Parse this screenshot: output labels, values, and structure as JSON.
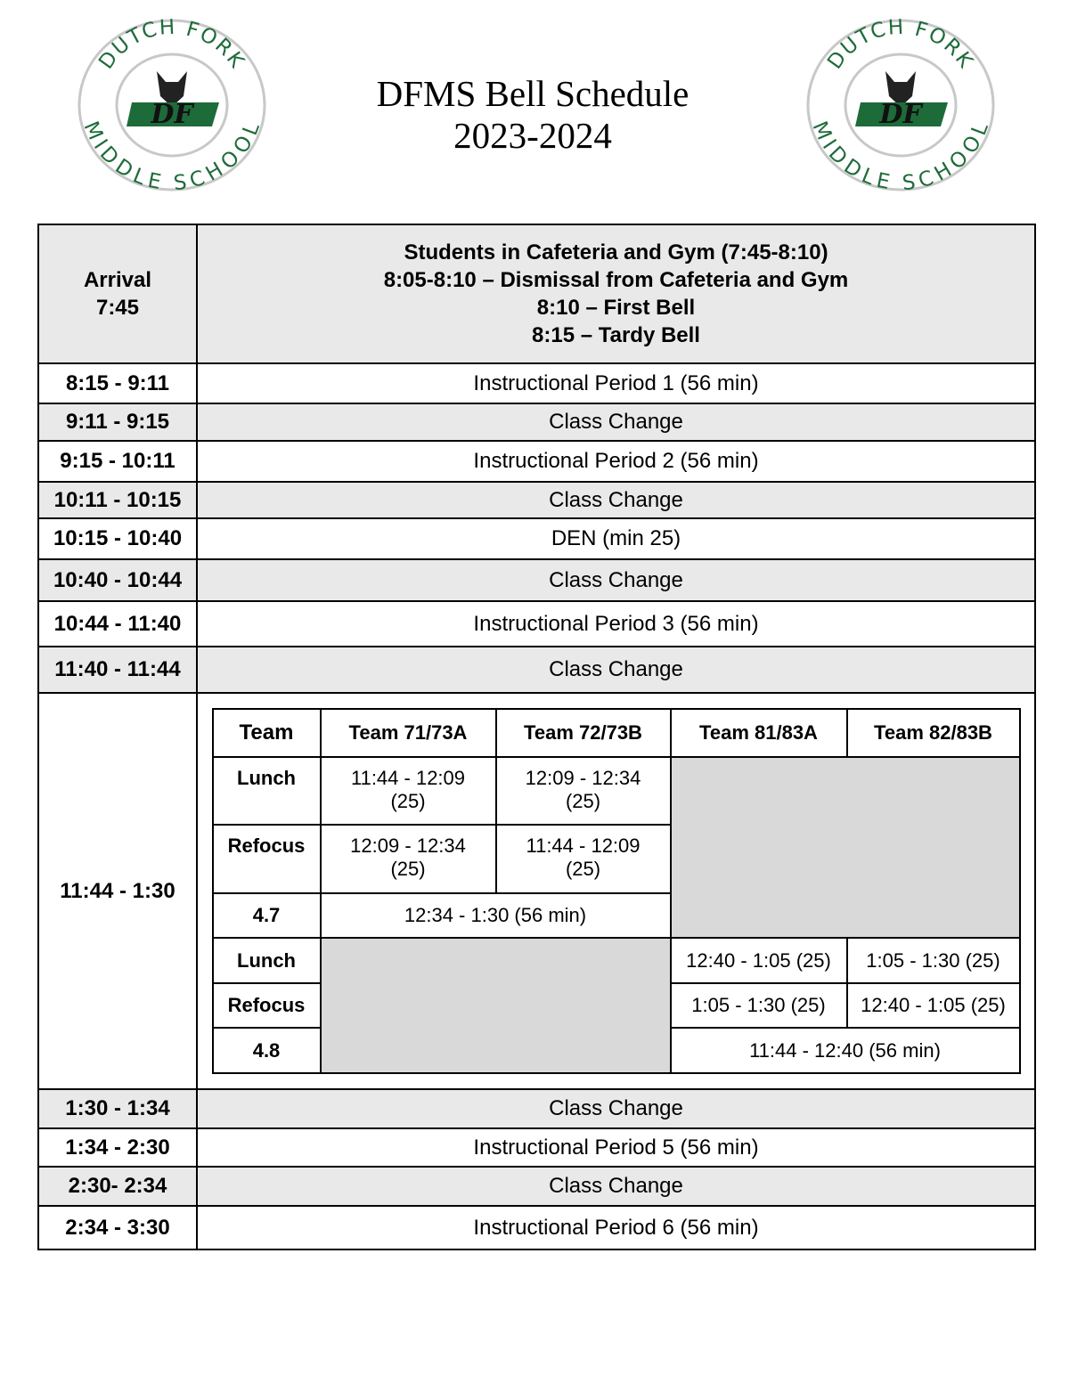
{
  "logo": {
    "top_text": "DUTCH FORK",
    "bottom_text": "MIDDLE SCHOOL",
    "monogram": "DF",
    "colors": {
      "green": "#1e6b3a",
      "ring": "#c8c8c8"
    }
  },
  "title": {
    "line1": "DFMS Bell Schedule",
    "line2": "2023-2024"
  },
  "arrival": {
    "time_lines": [
      "Arrival",
      "7:45"
    ],
    "details": [
      "Students in Cafeteria and Gym (7:45-8:10)",
      "8:05-8:10 – Dismissal from Cafeteria and Gym",
      "8:10 – First Bell",
      "8:15 – Tardy Bell"
    ]
  },
  "rows_before": [
    {
      "time": "8:15 - 9:11",
      "activity": "Instructional Period 1 (56 min)",
      "shaded": false
    },
    {
      "time": "9:11 - 9:15",
      "activity": "Class Change",
      "shaded": true
    },
    {
      "time": "9:15 - 10:11",
      "activity": "Instructional Period 2 (56 min)",
      "shaded": false
    },
    {
      "time": "10:11 - 10:15",
      "activity": "Class Change",
      "shaded": true
    },
    {
      "time": "10:15 - 10:40",
      "activity": "DEN (min 25)",
      "shaded": false
    },
    {
      "time": "10:40 - 10:44",
      "activity": "Class Change",
      "shaded": true
    },
    {
      "time": "10:44 - 11:40",
      "activity": "Instructional Period 3 (56 min)",
      "shaded": false
    },
    {
      "time": "11:40 - 11:44",
      "activity": "Class Change",
      "shaded": true
    }
  ],
  "lunch_block": {
    "time": "11:44 - 1:30",
    "headers": [
      "Team",
      "Team 71/73A",
      "Team 72/73B",
      "Team 81/83A",
      "Team 82/83B"
    ],
    "grade7": {
      "lunch": {
        "label": "Lunch",
        "a": [
          "11:44 - 12:09",
          "(25)"
        ],
        "b": [
          "12:09 - 12:34",
          "(25)"
        ]
      },
      "refocus": {
        "label": "Refocus",
        "a": [
          "12:09 - 12:34",
          "(25)"
        ],
        "b": [
          "11:44 - 12:09",
          "(25)"
        ]
      },
      "period": {
        "label": "4.7",
        "value": "12:34 - 1:30 (56 min)"
      }
    },
    "grade8": {
      "lunch": {
        "label": "Lunch",
        "a": "12:40 - 1:05 (25)",
        "b": "1:05 - 1:30 (25)"
      },
      "refocus": {
        "label": "Refocus",
        "a": "1:05 - 1:30 (25)",
        "b": "12:40 - 1:05 (25)"
      },
      "period": {
        "label": "4.8",
        "value": "11:44 - 12:40 (56 min)"
      }
    }
  },
  "rows_after": [
    {
      "time": "1:30 - 1:34",
      "activity": "Class Change",
      "shaded": true
    },
    {
      "time": "1:34 - 2:30",
      "activity": "Instructional Period 5 (56 min)",
      "shaded": false
    },
    {
      "time": "2:30- 2:34",
      "activity": "Class Change",
      "shaded": true
    },
    {
      "time": "2:34 - 3:30",
      "activity": "Instructional Period 6 (56 min)",
      "shaded": false
    }
  ]
}
